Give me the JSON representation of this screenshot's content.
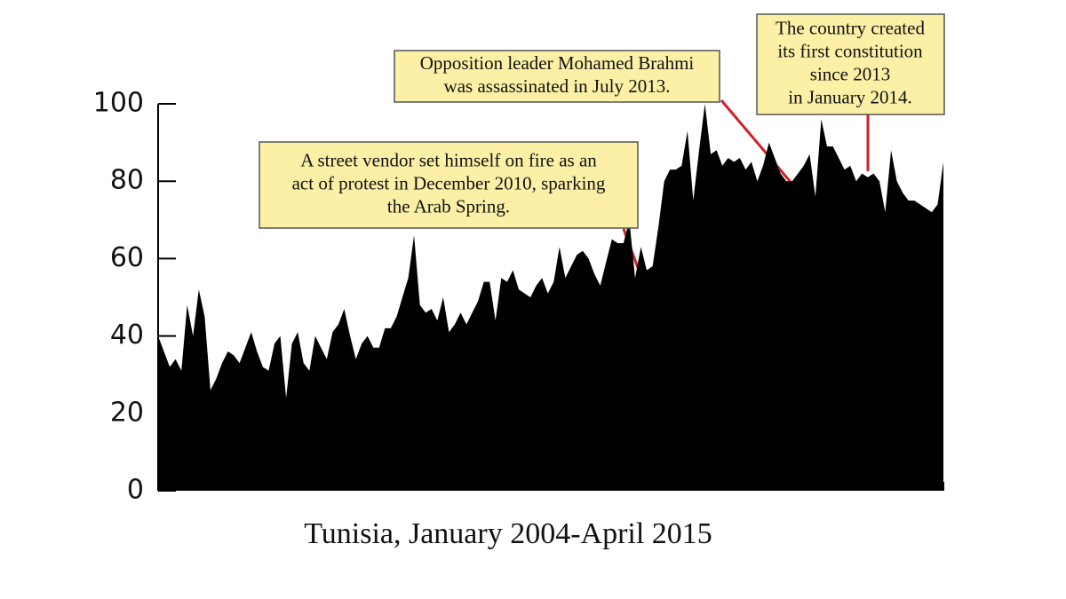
{
  "chart_data": {
    "type": "area",
    "title": "Tunisia, January 2004-April 2015",
    "color": "#000000",
    "values": [
      40,
      36,
      32,
      34,
      31,
      48,
      40,
      52,
      45,
      26,
      29,
      33,
      36,
      35,
      33,
      37,
      41,
      36,
      32,
      31,
      38,
      40,
      24,
      38,
      41,
      33,
      31,
      40,
      37,
      34,
      41,
      43,
      47,
      40,
      34,
      38,
      40,
      37,
      37,
      42,
      42,
      45,
      50,
      55,
      66,
      48,
      46,
      47,
      44,
      50,
      41,
      43,
      46,
      43,
      46,
      49,
      54,
      54,
      44,
      55,
      54,
      57,
      52,
      51,
      50,
      53,
      55,
      51,
      54,
      63,
      55,
      58,
      61,
      62,
      60,
      56,
      53,
      59,
      65,
      64,
      64,
      70,
      55,
      63,
      57,
      58,
      68,
      80,
      83,
      83,
      84,
      93,
      75,
      88,
      100,
      87,
      88,
      84,
      86,
      85,
      86,
      83,
      85,
      80,
      84,
      90,
      86,
      82,
      80,
      80,
      82,
      84,
      87,
      76,
      96,
      89,
      89,
      86,
      83,
      84,
      80,
      82,
      81,
      82,
      80,
      72,
      88,
      80,
      77,
      75,
      75,
      74,
      73,
      72,
      74,
      85
    ],
    "ylim": [
      0,
      100
    ],
    "yticks": [
      0,
      20,
      40,
      60,
      80,
      100
    ],
    "annotations": [
      {
        "lines": [
          "A street vendor set himself on fire as an",
          "act of protest in December 2010, sparking",
          "the Arab Spring."
        ]
      },
      {
        "lines": [
          "Opposition leader Mohamed Brahmi",
          "was assassinated in July 2013."
        ]
      },
      {
        "lines": [
          "The country created",
          "its first constitution",
          "since 2013",
          "in January 2014."
        ]
      }
    ]
  }
}
